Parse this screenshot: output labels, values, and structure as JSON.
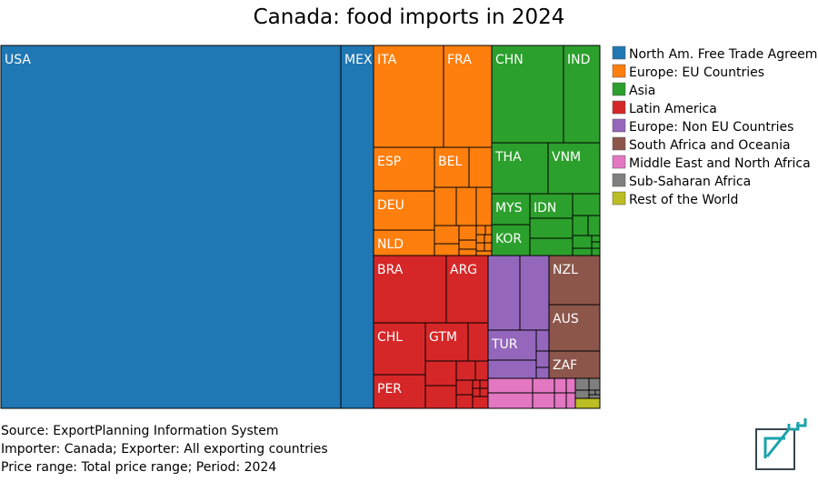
{
  "title": "Canada: food imports in 2024",
  "legend": [
    {
      "label": "North Am. Free Trade Agreement",
      "color": "#1f77b4"
    },
    {
      "label": "Europe: EU Countries",
      "color": "#ff7f0e"
    },
    {
      "label": "Asia",
      "color": "#2ca02c"
    },
    {
      "label": "Latin America",
      "color": "#d62728"
    },
    {
      "label": "Europe: Non EU Countries",
      "color": "#9467bd"
    },
    {
      "label": "South Africa and Oceania",
      "color": "#8c564b"
    },
    {
      "label": "Middle East and North Africa",
      "color": "#e377c2"
    },
    {
      "label": "Sub-Saharan Africa",
      "color": "#7f7f7f"
    },
    {
      "label": "Rest of the World",
      "color": "#bcbd22"
    }
  ],
  "chart_data": {
    "type": "treemap",
    "title": "Canada: food imports in 2024",
    "groups": [
      "North Am. Free Trade Agreement",
      "Europe: EU Countries",
      "Asia",
      "Latin America",
      "Europe: Non EU Countries",
      "South Africa and Oceania",
      "Middle East and North Africa",
      "Sub-Saharan Africa",
      "Rest of the World"
    ],
    "labeled_cells": [
      {
        "label": "USA",
        "group": "North Am. Free Trade Agreement"
      },
      {
        "label": "MEX",
        "group": "North Am. Free Trade Agreement"
      },
      {
        "label": "ITA",
        "group": "Europe: EU Countries"
      },
      {
        "label": "FRA",
        "group": "Europe: EU Countries"
      },
      {
        "label": "ESP",
        "group": "Europe: EU Countries"
      },
      {
        "label": "BEL",
        "group": "Europe: EU Countries"
      },
      {
        "label": "DEU",
        "group": "Europe: EU Countries"
      },
      {
        "label": "NLD",
        "group": "Europe: EU Countries"
      },
      {
        "label": "CHN",
        "group": "Asia"
      },
      {
        "label": "IND",
        "group": "Asia"
      },
      {
        "label": "THA",
        "group": "Asia"
      },
      {
        "label": "VNM",
        "group": "Asia"
      },
      {
        "label": "MYS",
        "group": "Asia"
      },
      {
        "label": "IDN",
        "group": "Asia"
      },
      {
        "label": "KOR",
        "group": "Asia"
      },
      {
        "label": "BRA",
        "group": "Latin America"
      },
      {
        "label": "ARG",
        "group": "Latin America"
      },
      {
        "label": "CHL",
        "group": "Latin America"
      },
      {
        "label": "GTM",
        "group": "Latin America"
      },
      {
        "label": "PER",
        "group": "Latin America"
      },
      {
        "label": "TUR",
        "group": "Europe: Non EU Countries"
      },
      {
        "label": "NZL",
        "group": "South Africa and Oceania"
      },
      {
        "label": "AUS",
        "group": "South Africa and Oceania"
      },
      {
        "label": "ZAF",
        "group": "South Africa and Oceania"
      }
    ]
  },
  "footer": {
    "source": "Source: ExportPlanning Information System",
    "importer": "Importer: Canada; Exporter: All exporting countries",
    "price": "Price range: Total price range; Period: 2024"
  }
}
